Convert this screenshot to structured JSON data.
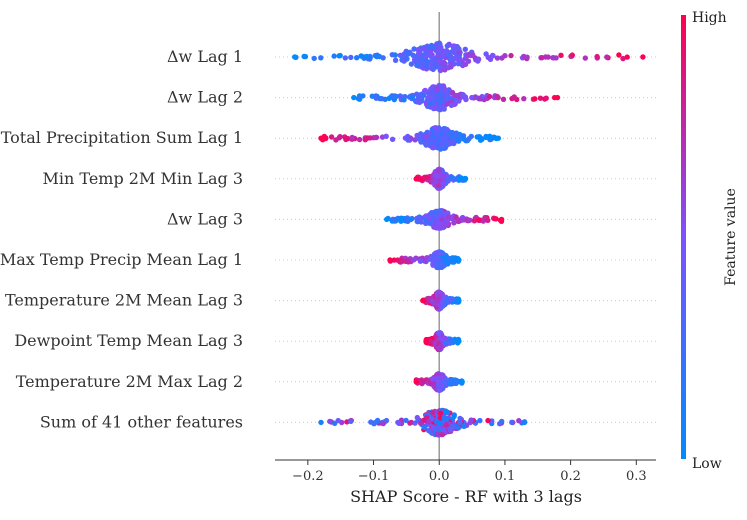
{
  "chart_data": {
    "type": "scatter",
    "subtype": "shap-beeswarm",
    "xlabel": "SHAP Score - RF with 3 lags",
    "xlim": [
      -0.25,
      0.33
    ],
    "xticks": [
      -0.2,
      -0.1,
      0.0,
      0.1,
      0.2,
      0.3
    ],
    "xtick_labels": [
      "−0.2",
      "−0.1",
      "0.0",
      "0.1",
      "0.2",
      "0.3"
    ],
    "colorbar": {
      "label": "Feature value",
      "high_label": "High",
      "low_label": "Low",
      "low_color": "#008bfb",
      "high_color": "#ff0052"
    },
    "features": [
      {
        "label": "Δw Lag 1",
        "min": -0.22,
        "max": 0.31,
        "spread": 1.0
      },
      {
        "label": "Δw Lag 2",
        "min": -0.13,
        "max": 0.18,
        "spread": 0.85
      },
      {
        "label": "Total Precipitation Sum Lag 1",
        "min": -0.18,
        "max": 0.09,
        "spread": 0.75
      },
      {
        "label": "Min Temp 2M Min Lag 3",
        "min": -0.035,
        "max": 0.04,
        "spread": 0.65
      },
      {
        "label": "Δw Lag 3",
        "min": -0.08,
        "max": 0.095,
        "spread": 0.6
      },
      {
        "label": "Max Temp Precip Mean Lag 1",
        "min": -0.075,
        "max": 0.03,
        "spread": 0.5
      },
      {
        "label": "Temperature 2M Mean Lag 3",
        "min": -0.025,
        "max": 0.03,
        "spread": 0.55
      },
      {
        "label": "Dewpoint Temp Mean Lag 3",
        "min": -0.02,
        "max": 0.03,
        "spread": 0.55
      },
      {
        "label": "Temperature 2M Max Lag 2",
        "min": -0.035,
        "max": 0.035,
        "spread": 0.55
      },
      {
        "label": "Sum of 41 other features",
        "min": -0.18,
        "max": 0.13,
        "spread": 0.9
      }
    ]
  }
}
